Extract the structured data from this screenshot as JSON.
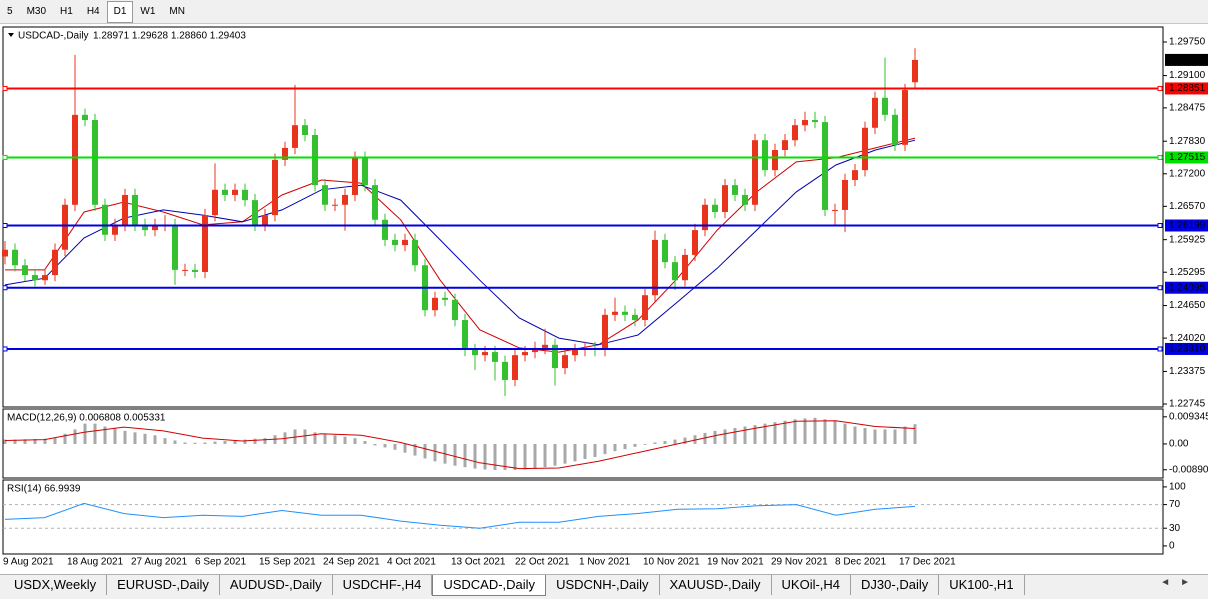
{
  "toolbar": {
    "timeframes": [
      "5",
      "M30",
      "H1",
      "H4",
      "D1",
      "W1",
      "MN"
    ],
    "active": "D1"
  },
  "chart": {
    "type": "candlestick",
    "header": "USDCAD-,Daily",
    "ohlc_text": "1.28971 1.29628 1.28860 1.29403",
    "up_color": "#e8341c",
    "down_color": "#35c12f",
    "ylim": [
      1.22687,
      1.3004
    ],
    "yticks": [
      {
        "value": 1.2975,
        "label": "1.29750"
      },
      {
        "value": 1.291,
        "label": "1.29100"
      },
      {
        "value": 1.28475,
        "label": "1.28475"
      },
      {
        "value": 1.2783,
        "label": "1.27830"
      },
      {
        "value": 1.272,
        "label": "1.27200"
      },
      {
        "value": 1.2657,
        "label": "1.26570"
      },
      {
        "value": 1.25925,
        "label": "1.25925"
      },
      {
        "value": 1.25295,
        "label": "1.25295"
      },
      {
        "value": 1.2465,
        "label": "1.24650"
      },
      {
        "value": 1.2402,
        "label": "1.24020"
      },
      {
        "value": 1.23375,
        "label": "1.23375"
      },
      {
        "value": 1.22745,
        "label": "1.22745"
      }
    ],
    "levels": [
      {
        "value": 1.28851,
        "label": "1.28851",
        "color": "#ff0000"
      },
      {
        "value": 1.27515,
        "label": "1.27515",
        "color": "#00e000"
      },
      {
        "value": 1.26199,
        "label": "1.26199",
        "color": "#0000e0"
      },
      {
        "value": 1.24995,
        "label": "1.24995",
        "color": "#0000e0"
      },
      {
        "value": 1.2381,
        "label": "1.23810",
        "color": "#0000e0"
      }
    ],
    "last_price": 1.29403,
    "candles": [
      [
        1.256,
        1.259,
        1.2545,
        1.2573
      ],
      [
        1.2573,
        1.2585,
        1.2531,
        1.2543
      ],
      [
        1.2543,
        1.2555,
        1.2512,
        1.2524
      ],
      [
        1.2524,
        1.2536,
        1.2502,
        1.2514
      ],
      [
        1.2514,
        1.2536,
        1.2505,
        1.2524
      ],
      [
        1.2524,
        1.2585,
        1.2512,
        1.2573
      ],
      [
        1.2573,
        1.2672,
        1.2561,
        1.266
      ],
      [
        1.266,
        1.295,
        1.2648,
        1.2834
      ],
      [
        1.2834,
        1.2846,
        1.2812,
        1.2824
      ],
      [
        1.2824,
        1.2836,
        1.2648,
        1.266
      ],
      [
        1.266,
        1.2672,
        1.259,
        1.2602
      ],
      [
        1.2602,
        1.2633,
        1.259,
        1.2621
      ],
      [
        1.2621,
        1.2691,
        1.2609,
        1.2679
      ],
      [
        1.2679,
        1.2691,
        1.2609,
        1.2621
      ],
      [
        1.2621,
        1.2633,
        1.2599,
        1.2611
      ],
      [
        1.2611,
        1.2633,
        1.2599,
        1.2621
      ],
      [
        1.2621,
        1.264,
        1.2609,
        1.2621
      ],
      [
        1.2621,
        1.2633,
        1.2505,
        1.2534
      ],
      [
        1.2534,
        1.2546,
        1.2522,
        1.2534
      ],
      [
        1.2534,
        1.2546,
        1.2518,
        1.253
      ],
      [
        1.253,
        1.2652,
        1.2518,
        1.264
      ],
      [
        1.264,
        1.274,
        1.2628,
        1.2689
      ],
      [
        1.2689,
        1.2701,
        1.2667,
        1.2679
      ],
      [
        1.2679,
        1.2701,
        1.2667,
        1.2689
      ],
      [
        1.2689,
        1.2701,
        1.2657,
        1.2669
      ],
      [
        1.2669,
        1.2681,
        1.2609,
        1.2621
      ],
      [
        1.2621,
        1.2652,
        1.2609,
        1.264
      ],
      [
        1.264,
        1.2759,
        1.2628,
        1.2747
      ],
      [
        1.2747,
        1.2782,
        1.2735,
        1.277
      ],
      [
        1.277,
        1.2892,
        1.2758,
        1.2814
      ],
      [
        1.2814,
        1.2826,
        1.2783,
        1.2795
      ],
      [
        1.2795,
        1.2807,
        1.2686,
        1.2698
      ],
      [
        1.2698,
        1.271,
        1.2648,
        1.266
      ],
      [
        1.266,
        1.2672,
        1.2648,
        1.266
      ],
      [
        1.266,
        1.2691,
        1.261,
        1.2679
      ],
      [
        1.2679,
        1.2763,
        1.2667,
        1.2751
      ],
      [
        1.2751,
        1.2763,
        1.2686,
        1.2698
      ],
      [
        1.2698,
        1.271,
        1.2619,
        1.2631
      ],
      [
        1.2631,
        1.2643,
        1.258,
        1.2592
      ],
      [
        1.2592,
        1.2604,
        1.257,
        1.2582
      ],
      [
        1.2582,
        1.2604,
        1.257,
        1.2592
      ],
      [
        1.2592,
        1.2604,
        1.2531,
        1.2543
      ],
      [
        1.2543,
        1.2555,
        1.2444,
        1.2456
      ],
      [
        1.2456,
        1.2492,
        1.2444,
        1.248
      ],
      [
        1.248,
        1.2492,
        1.2464,
        1.2476
      ],
      [
        1.2476,
        1.2488,
        1.2425,
        1.2437
      ],
      [
        1.2437,
        1.2449,
        1.2367,
        1.2379
      ],
      [
        1.2379,
        1.2391,
        1.234,
        1.2369
      ],
      [
        1.2369,
        1.2387,
        1.2357,
        1.2375
      ],
      [
        1.2375,
        1.2387,
        1.232,
        1.2356
      ],
      [
        1.2356,
        1.2368,
        1.229,
        1.2321
      ],
      [
        1.2321,
        1.2381,
        1.2309,
        1.2369
      ],
      [
        1.2369,
        1.2387,
        1.2357,
        1.2375
      ],
      [
        1.2375,
        1.2395,
        1.2363,
        1.2383
      ],
      [
        1.2383,
        1.242,
        1.2371,
        1.2389
      ],
      [
        1.2389,
        1.2401,
        1.231,
        1.2344
      ],
      [
        1.2344,
        1.2381,
        1.2332,
        1.2369
      ],
      [
        1.2369,
        1.2391,
        1.2357,
        1.2379
      ],
      [
        1.2379,
        1.2395,
        1.2367,
        1.2383
      ],
      [
        1.2383,
        1.2395,
        1.2367,
        1.2379
      ],
      [
        1.2379,
        1.2459,
        1.2367,
        1.2447
      ],
      [
        1.2447,
        1.248,
        1.2435,
        1.2453
      ],
      [
        1.2453,
        1.2465,
        1.2435,
        1.2447
      ],
      [
        1.2447,
        1.2459,
        1.2425,
        1.2437
      ],
      [
        1.2437,
        1.2497,
        1.2425,
        1.2485
      ],
      [
        1.2485,
        1.261,
        1.2473,
        1.2592
      ],
      [
        1.2592,
        1.2604,
        1.2537,
        1.2549
      ],
      [
        1.2549,
        1.2561,
        1.2495,
        1.2514
      ],
      [
        1.2514,
        1.2575,
        1.2502,
        1.2563
      ],
      [
        1.2563,
        1.2623,
        1.2551,
        1.2611
      ],
      [
        1.2611,
        1.2672,
        1.2599,
        1.266
      ],
      [
        1.266,
        1.2672,
        1.2634,
        1.2646
      ],
      [
        1.2646,
        1.271,
        1.2634,
        1.2698
      ],
      [
        1.2698,
        1.271,
        1.2667,
        1.2679
      ],
      [
        1.2679,
        1.2691,
        1.2648,
        1.266
      ],
      [
        1.266,
        1.2797,
        1.2648,
        1.2785
      ],
      [
        1.2785,
        1.2797,
        1.2715,
        1.2727
      ],
      [
        1.2727,
        1.2778,
        1.2715,
        1.2766
      ],
      [
        1.2766,
        1.2797,
        1.2754,
        1.2785
      ],
      [
        1.2785,
        1.2826,
        1.2773,
        1.2814
      ],
      [
        1.2814,
        1.284,
        1.2802,
        1.2824
      ],
      [
        1.2824,
        1.284,
        1.2808,
        1.282
      ],
      [
        1.282,
        1.2832,
        1.2638,
        1.265
      ],
      [
        1.265,
        1.2662,
        1.262,
        1.265
      ],
      [
        1.265,
        1.272,
        1.2607,
        1.2708
      ],
      [
        1.2708,
        1.2739,
        1.2696,
        1.2727
      ],
      [
        1.2727,
        1.2821,
        1.2715,
        1.2809
      ],
      [
        1.2809,
        1.2879,
        1.2797,
        1.2867
      ],
      [
        1.2867,
        1.2945,
        1.2822,
        1.2834
      ],
      [
        1.2834,
        1.2846,
        1.2764,
        1.2776
      ],
      [
        1.2776,
        1.2894,
        1.2764,
        1.2882
      ],
      [
        1.28971,
        1.29628,
        1.2886,
        1.29403
      ]
    ],
    "ma": [
      {
        "color": "#d00000",
        "values": [
          1.2534,
          1.2534,
          1.2646,
          1.2665,
          1.2646,
          1.2621,
          1.2627,
          1.2679,
          1.2708,
          1.2702,
          1.2631,
          1.2514,
          1.2418,
          1.2383,
          1.2375,
          1.2389,
          1.2437,
          1.2518,
          1.2611,
          1.2685,
          1.2743,
          1.2751,
          1.277,
          1.2789
        ]
      },
      {
        "color": "#0000b0",
        "values": [
          1.2505,
          1.2518,
          1.2596,
          1.2634,
          1.265,
          1.264,
          1.2627,
          1.265,
          1.2689,
          1.2698,
          1.2669,
          1.2592,
          1.2514,
          1.2441,
          1.2402,
          1.2389,
          1.2408,
          1.2472,
          1.2537,
          1.2611,
          1.2685,
          1.2737,
          1.2766,
          1.2785
        ]
      }
    ],
    "dates": [
      "9 Aug 2021",
      "18 Aug 2021",
      "27 Aug 2021",
      "6 Sep 2021",
      "15 Sep 2021",
      "24 Sep 2021",
      "4 Oct 2021",
      "13 Oct 2021",
      "22 Oct 2021",
      "1 Nov 2021",
      "10 Nov 2021",
      "19 Nov 2021",
      "29 Nov 2021",
      "8 Dec 2021",
      "17 Dec 2021"
    ],
    "macd": {
      "header": "MACD(12,26,9) 0.006808 0.005331",
      "ylim": [
        -0.0114,
        0.0117
      ],
      "yticks": [
        {
          "value": 0.009345,
          "label": "0.009345"
        },
        {
          "value": 0,
          "label": "0.00"
        },
        {
          "value": -0.008902,
          "label": "-0.008902"
        }
      ],
      "histogram_color": "#a8a8a8",
      "signal_color": "#d00000",
      "histogram": [
        0.0015,
        0.0015,
        0.0016,
        0.0017,
        0.0018,
        0.002,
        0.0035,
        0.005,
        0.007,
        0.007,
        0.006,
        0.0055,
        0.0045,
        0.004,
        0.0035,
        0.003,
        0.002,
        0.0012,
        0.0005,
        0.0004,
        0.0005,
        0.0008,
        0.001,
        0.0012,
        0.0015,
        0.0018,
        0.002,
        0.003,
        0.004,
        0.005,
        0.005,
        0.004,
        0.0035,
        0.003,
        0.0025,
        0.002,
        0.001,
        -0.0005,
        -0.0012,
        -0.002,
        -0.003,
        -0.004,
        -0.005,
        -0.006,
        -0.0068,
        -0.0075,
        -0.008,
        -0.0085,
        -0.0088,
        -0.009,
        -0.009,
        -0.009,
        -0.0088,
        -0.0085,
        -0.008,
        -0.0075,
        -0.0068,
        -0.006,
        -0.0052,
        -0.0045,
        -0.0035,
        -0.0025,
        -0.0018,
        -0.001,
        -0.0003,
        0.0005,
        0.001,
        0.0015,
        0.0022,
        0.003,
        0.0038,
        0.0045,
        0.005,
        0.0055,
        0.006,
        0.0065,
        0.007,
        0.0075,
        0.008,
        0.0085,
        0.0088,
        0.009,
        0.0085,
        0.008,
        0.007,
        0.006,
        0.0055,
        0.005,
        0.005,
        0.005,
        0.006,
        0.006808
      ],
      "signal": [
        0.0012,
        0.0015,
        0.004,
        0.0058,
        0.0045,
        0.002,
        0.001,
        0.0018,
        0.0035,
        0.003,
        0.0005,
        -0.003,
        -0.0065,
        -0.0085,
        -0.0083,
        -0.006,
        -0.003,
        0.0,
        0.003,
        0.0055,
        0.0078,
        0.008,
        0.006,
        0.005331
      ]
    },
    "rsi": {
      "header": "RSI(14) 66.9939",
      "ylim": [
        -12,
        110
      ],
      "yticks": [
        100,
        70,
        30,
        0
      ],
      "levels": [
        70,
        30
      ],
      "color": "#1e90ff",
      "values": [
        45,
        48,
        72,
        55,
        48,
        52,
        50,
        60,
        52,
        52,
        42,
        35,
        30,
        40,
        40,
        50,
        55,
        62,
        63,
        68,
        70,
        52,
        62,
        66.9939
      ]
    }
  },
  "tabs": {
    "items": [
      "USDX,Weekly",
      "EURUSD-,Daily",
      "AUDUSD-,Daily",
      "USDCHF-,H4",
      "USDCAD-,Daily",
      "USDCNH-,Daily",
      "XAUUSD-,Daily",
      "UKOil-,H4",
      "DJ30-,Daily",
      "UK100-,H1"
    ],
    "active": "USDCAD-,Daily"
  }
}
